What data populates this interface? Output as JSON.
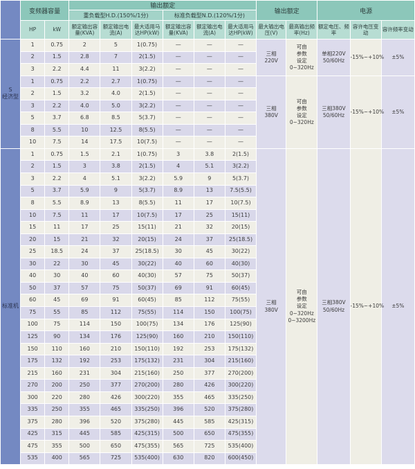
{
  "theme": {
    "header_group_bg": "#8cc7ba",
    "header_sub_bg": "#a3d3c8",
    "header_col_bg": "#b7ddd3",
    "side_label_bg": "#7489c2",
    "row_light_bg": "#f0efe7",
    "row_lavender_bg": "#d9d8ea",
    "band_cream_bg": "#efeee5",
    "band_lavender_bg": "#dcdbec",
    "text_color": "#3c3c3c"
  },
  "table": {
    "header": {
      "inverter_capacity": "变频器容量",
      "output_rating": "输出额定",
      "heavy_duty": "重负载型H.D.(150%/1分)",
      "normal_duty": "标准负载型N.D.(120%/1分)",
      "power": "电源",
      "col_hp": "HP",
      "col_kw": "kW",
      "col_kva": "额定输出容量(KVA)",
      "col_current": "额定输出电流(A)",
      "col_motor": "最大适用马达HP(kW)",
      "col_max_voltage": "最大输出电压(V)",
      "col_max_freq": "最高输出频率(Hz)",
      "col_rated_vf": "额定电压、频率",
      "col_voltage_fluct": "容许电压变动",
      "col_freq_fluct": "容许频率变动"
    },
    "dash": "—",
    "sections": [
      {
        "label": "S\n经济型",
        "groups": [
          {
            "max_voltage": "三相\n220V",
            "max_freq": "可由\n参数\n设定\n0~320Hz",
            "rated_vf": "单相220V\n50/60Hz",
            "voltage_fluct": "-15%~+10%",
            "freq_fluct": "±5%",
            "rows": [
              [
                "1",
                "0.75",
                "2",
                "5",
                "1(0.75)",
                "—",
                "—",
                "—"
              ],
              [
                "2",
                "1.5",
                "2.8",
                "7",
                "2(1.5)",
                "—",
                "—",
                "—"
              ],
              [
                "3",
                "2.2",
                "4.4",
                "11",
                "3(2.2)",
                "—",
                "—",
                "—"
              ]
            ]
          },
          {
            "max_voltage": "三相\n380V",
            "max_freq": "可由\n参数\n设定\n0~320Hz",
            "rated_vf": "三相380V\n50/60Hz",
            "voltage_fluct": "-15%~+10%",
            "freq_fluct": "±5%",
            "rows": [
              [
                "1",
                "0.75",
                "2.2",
                "2.7",
                "1(0.75)",
                "—",
                "—",
                "—"
              ],
              [
                "2",
                "1.5",
                "3.2",
                "4.0",
                "2(1.5)",
                "—",
                "—",
                "—"
              ],
              [
                "3",
                "2.2",
                "4.0",
                "5.0",
                "3(2.2)",
                "—",
                "—",
                "—"
              ],
              [
                "5",
                "3.7",
                "6.8",
                "8.5",
                "5(3.7)",
                "—",
                "—",
                "—"
              ],
              [
                "8",
                "5.5",
                "10",
                "12.5",
                "8(5.5)",
                "—",
                "—",
                "—"
              ],
              [
                "10",
                "7.5",
                "14",
                "17.5",
                "10(7.5)",
                "—",
                "—",
                "—"
              ]
            ]
          }
        ]
      },
      {
        "label": "标准机",
        "groups": [
          {
            "max_voltage": "三相\n380V",
            "max_freq": "可由\n参数\n设定\n0~320Hz\n0~3200Hz",
            "rated_vf": "三相380V\n50/60Hz",
            "voltage_fluct": "-15%~+10%",
            "freq_fluct": "±5%",
            "rows": [
              [
                "1",
                "0.75",
                "1.5",
                "2.1",
                "1(0.75)",
                "3",
                "3.8",
                "2(1.5)"
              ],
              [
                "2",
                "1.5",
                "3",
                "3.8",
                "2(1.5)",
                "4",
                "5.1",
                "3(2.2)"
              ],
              [
                "3",
                "2.2",
                "4",
                "5.1",
                "3(2.2)",
                "5.9",
                "9",
                "5(3.7)"
              ],
              [
                "5",
                "3.7",
                "5.9",
                "9",
                "5(3.7)",
                "8.9",
                "13",
                "7.5(5.5)"
              ],
              [
                "8",
                "5.5",
                "8.9",
                "13",
                "8(5.5)",
                "11",
                "17",
                "10(7.5)"
              ],
              [
                "10",
                "7.5",
                "11",
                "17",
                "10(7.5)",
                "17",
                "25",
                "15(11)"
              ],
              [
                "15",
                "11",
                "17",
                "25",
                "15(11)",
                "21",
                "32",
                "20(15)"
              ],
              [
                "20",
                "15",
                "21",
                "32",
                "20(15)",
                "24",
                "37",
                "25(18.5)"
              ],
              [
                "25",
                "18.5",
                "24",
                "37",
                "25(18.5)",
                "30",
                "45",
                "30(22)"
              ],
              [
                "30",
                "22",
                "30",
                "45",
                "30(22)",
                "40",
                "60",
                "40(30)"
              ],
              [
                "40",
                "30",
                "40",
                "60",
                "40(30)",
                "57",
                "75",
                "50(37)"
              ],
              [
                "50",
                "37",
                "57",
                "75",
                "50(37)",
                "69",
                "91",
                "60(45)"
              ],
              [
                "60",
                "45",
                "69",
                "91",
                "60(45)",
                "85",
                "112",
                "75(55)"
              ],
              [
                "75",
                "55",
                "85",
                "112",
                "75(55)",
                "114",
                "150",
                "100(75)"
              ],
              [
                "100",
                "75",
                "114",
                "150",
                "100(75)",
                "134",
                "176",
                "125(90)"
              ],
              [
                "125",
                "90",
                "134",
                "176",
                "125(90)",
                "160",
                "210",
                "150(110)"
              ],
              [
                "150",
                "110",
                "160",
                "210",
                "150(110)",
                "192",
                "253",
                "175(132)"
              ],
              [
                "175",
                "132",
                "192",
                "253",
                "175(132)",
                "231",
                "304",
                "215(160)"
              ],
              [
                "215",
                "160",
                "231",
                "304",
                "215(160)",
                "250",
                "377",
                "270(200)"
              ],
              [
                "270",
                "200",
                "250",
                "377",
                "270(200)",
                "280",
                "426",
                "300(220)"
              ],
              [
                "300",
                "220",
                "280",
                "426",
                "300(220)",
                "355",
                "465",
                "335(250)"
              ],
              [
                "335",
                "250",
                "355",
                "465",
                "335(250)",
                "396",
                "520",
                "375(280)"
              ],
              [
                "375",
                "280",
                "396",
                "520",
                "375(280)",
                "445",
                "585",
                "425(315)"
              ],
              [
                "425",
                "315",
                "445",
                "585",
                "425(315)",
                "500",
                "650",
                "475(355)"
              ],
              [
                "475",
                "355",
                "500",
                "650",
                "475(355)",
                "565",
                "725",
                "535(400)"
              ],
              [
                "535",
                "400",
                "565",
                "725",
                "535(400)",
                "630",
                "820",
                "600(450)"
              ]
            ]
          }
        ]
      }
    ]
  }
}
